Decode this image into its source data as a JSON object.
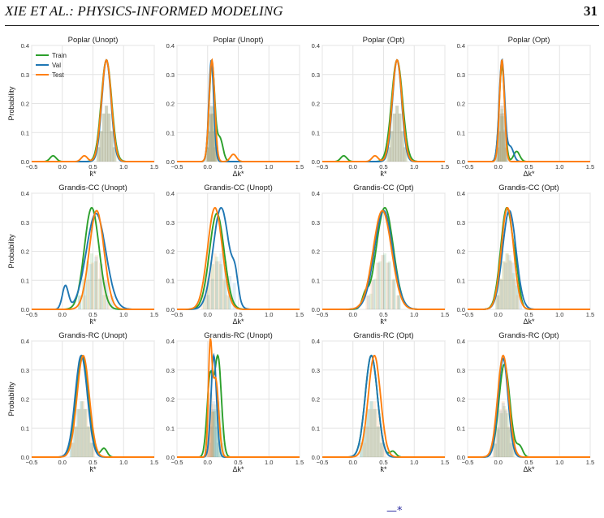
{
  "header": {
    "running_head": "XIE ET AL.: PHYSICS-INFORMED MODELING",
    "page_number": "31"
  },
  "footer_mark": "—*",
  "chart_data": {
    "type": "line",
    "colors": {
      "Train": "#2ca02c",
      "Val": "#1f77b4",
      "Test": "#ff7f0e"
    },
    "legend": {
      "entries": [
        "Train",
        "Val",
        "Test"
      ],
      "location": "upper-left of first panel"
    },
    "grid": true,
    "shared_ylabel": "Probability",
    "ylim": [
      0,
      0.4
    ],
    "yticks": [
      "0.0",
      "0.1",
      "0.2",
      "0.3",
      "0.4"
    ],
    "xlim": [
      -0.5,
      1.5
    ],
    "xticks": [
      "−0.5",
      "0.0",
      "0.5",
      "1.0",
      "1.5"
    ],
    "panels": [
      {
        "title": "Poplar (Unopt)",
        "xlabel": "k̄*",
        "series": {
          "Train": [
            0.72,
            0.085,
            0.35,
            -0.15,
            0.02
          ],
          "Val": [
            0.72,
            0.075,
            0.35,
            0,
            0
          ],
          "Test": [
            0.72,
            0.08,
            0.35,
            0.36,
            0.02
          ]
        }
      },
      {
        "title": "Poplar (Unopt)",
        "xlabel": "Δk*",
        "series": {
          "Train": [
            0.07,
            0.045,
            0.34,
            0.2,
            0.08
          ],
          "Val": [
            0.06,
            0.04,
            0.35,
            0,
            0
          ],
          "Test": [
            0.07,
            0.045,
            0.35,
            0.42,
            0.025
          ]
        }
      },
      {
        "title": "Poplar (Opt)",
        "xlabel": "k̄*",
        "series": {
          "Train": [
            0.72,
            0.09,
            0.35,
            -0.15,
            0.02
          ],
          "Val": [
            0.72,
            0.075,
            0.35,
            0,
            0
          ],
          "Test": [
            0.72,
            0.08,
            0.35,
            0.36,
            0.02
          ]
        }
      },
      {
        "title": "Poplar (Opt)",
        "xlabel": "Δk*",
        "series": {
          "Train": [
            0.06,
            0.045,
            0.33,
            0.3,
            0.035
          ],
          "Val": [
            0.06,
            0.045,
            0.35,
            0.2,
            0.05
          ],
          "Test": [
            0.06,
            0.04,
            0.35,
            0,
            0
          ]
        }
      },
      {
        "title": "Grandis-CC (Unopt)",
        "xlabel": "k̄*",
        "series": {
          "Train": [
            0.48,
            0.12,
            0.35,
            0,
            0
          ],
          "Val": [
            0.55,
            0.16,
            0.33,
            0.05,
            0.08
          ],
          "Test": [
            0.56,
            0.12,
            0.34,
            0,
            0
          ]
        }
      },
      {
        "title": "Grandis-CC (Unopt)",
        "xlabel": "Δk*",
        "series": {
          "Train": [
            0.15,
            0.12,
            0.33,
            0,
            0
          ],
          "Val": [
            0.22,
            0.13,
            0.35,
            0.45,
            0.08
          ],
          "Test": [
            0.12,
            0.12,
            0.35,
            0,
            0
          ]
        }
      },
      {
        "title": "Grandis-CC (Opt)",
        "xlabel": "k̄*",
        "series": {
          "Train": [
            0.52,
            0.14,
            0.35,
            0.2,
            0.04
          ],
          "Val": [
            0.5,
            0.15,
            0.34,
            0,
            0
          ],
          "Test": [
            0.48,
            0.15,
            0.34,
            0,
            0
          ]
        }
      },
      {
        "title": "Grandis-CC (Opt)",
        "xlabel": "Δk*",
        "series": {
          "Train": [
            0.14,
            0.1,
            0.35,
            0.3,
            0.06
          ],
          "Val": [
            0.18,
            0.11,
            0.34,
            0,
            0
          ],
          "Test": [
            0.15,
            0.1,
            0.35,
            0,
            0
          ]
        }
      },
      {
        "title": "Grandis-RC (Unopt)",
        "xlabel": "k̄*",
        "series": {
          "Train": [
            0.32,
            0.1,
            0.35,
            0.68,
            0.03
          ],
          "Val": [
            0.31,
            0.1,
            0.35,
            0,
            0
          ],
          "Test": [
            0.34,
            0.1,
            0.35,
            0,
            0
          ]
        }
      },
      {
        "title": "Grandis-RC (Unopt)",
        "xlabel": "Δk*",
        "series": {
          "Train": [
            0.17,
            0.055,
            0.34,
            0.04,
            0.27
          ],
          "Val": [
            0.1,
            0.045,
            0.35,
            0,
            0
          ],
          "Test": [
            0.04,
            0.03,
            0.35,
            0.13,
            0.27
          ]
        }
      },
      {
        "title": "Grandis-RC (Opt)",
        "xlabel": "k̄*",
        "series": {
          "Train": [
            0.3,
            0.1,
            0.35,
            0.65,
            0.02
          ],
          "Val": [
            0.3,
            0.1,
            0.35,
            0,
            0
          ],
          "Test": [
            0.35,
            0.1,
            0.35,
            0,
            0
          ]
        }
      },
      {
        "title": "Grandis-RC (Opt)",
        "xlabel": "Δk*",
        "series": {
          "Train": [
            0.1,
            0.09,
            0.32,
            0.35,
            0.035
          ],
          "Val": [
            0.08,
            0.08,
            0.34,
            0,
            0
          ],
          "Test": [
            0.08,
            0.09,
            0.35,
            0,
            0
          ]
        }
      }
    ]
  }
}
